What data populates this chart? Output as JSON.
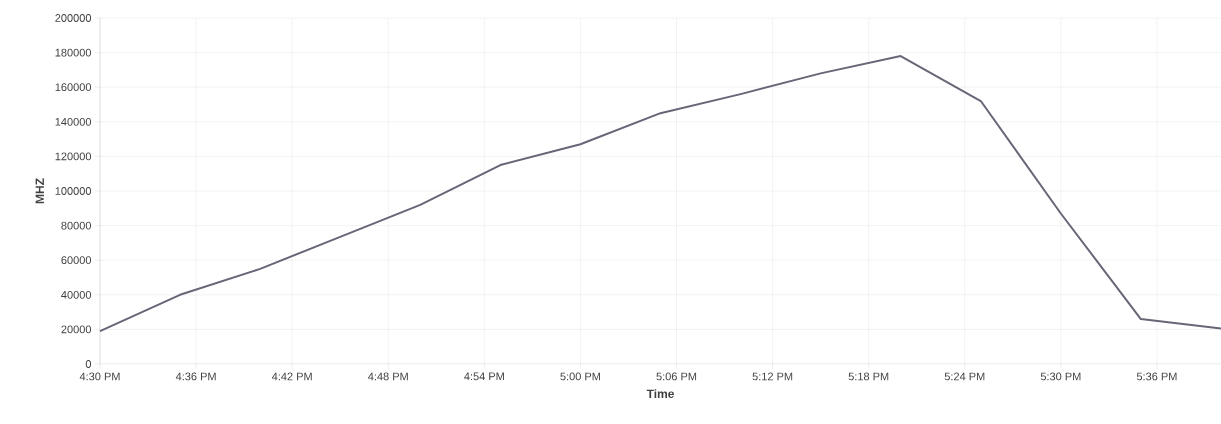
{
  "chart_data": {
    "type": "line",
    "xlabel": "Time",
    "ylabel": "MHZ",
    "x": [
      16.5,
      16.5833,
      16.6667,
      16.75,
      16.8333,
      16.9167,
      17,
      17.0833,
      17.1667,
      17.25,
      17.3333,
      17.4167,
      17.5,
      17.5833,
      17.6667
    ],
    "series": [
      {
        "color": "#666677",
        "values": [
          19000,
          40000,
          55000,
          73500,
          92000,
          115000,
          127000,
          145000,
          156000,
          168000,
          178000,
          152000,
          87000,
          26000,
          20500
        ]
      }
    ],
    "xlim": [
      16.5,
      17.6667
    ],
    "xticks": [
      {
        "value": 16.5,
        "label": "4:30 PM"
      },
      {
        "value": 16.6,
        "label": "4:36 PM"
      },
      {
        "value": 16.7,
        "label": "4:42 PM"
      },
      {
        "value": 16.8,
        "label": "4:48 PM"
      },
      {
        "value": 16.9,
        "label": "4:54 PM"
      },
      {
        "value": 17,
        "label": "5:00 PM"
      },
      {
        "value": 17.1,
        "label": "5:06 PM"
      },
      {
        "value": 17.2,
        "label": "5:12 PM"
      },
      {
        "value": 17.3,
        "label": "5:18 PM"
      },
      {
        "value": 17.4,
        "label": "5:24 PM"
      },
      {
        "value": 17.5,
        "label": "5:30 PM"
      },
      {
        "value": 17.6,
        "label": "5:36 PM"
      }
    ],
    "ylim": [
      0,
      200000
    ],
    "yticks": [
      0,
      20000,
      40000,
      60000,
      80000,
      100000,
      120000,
      140000,
      160000,
      180000,
      200000
    ],
    "grid": true,
    "marker": "none",
    "line_style": "solid"
  }
}
